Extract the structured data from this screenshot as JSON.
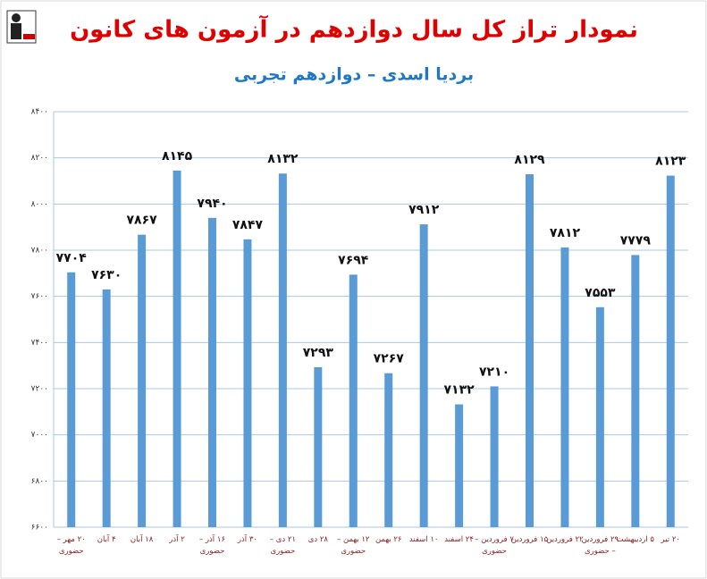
{
  "chart_data": {
    "type": "bar",
    "title": "نمودار تراز کل سال دوازدهم در آزمون های کانون",
    "subtitle": "بردیا اسدی – دوازدهم تجربی",
    "categories": [
      "۲۰ مهر – حضوری",
      "۴ آبان",
      "۱۸ آبان",
      "۲ آذر",
      "۱۶ آذر – حضوری",
      "۳۰ آذر",
      "۲۱ دی – حضوری",
      "۲۸ دی",
      "۱۲ بهمن – حضوری",
      "۲۶ بهمن",
      "۱۰ اسفند",
      "۲۴ اسفند",
      "۷ فروردین – حضوری",
      "۱۵ فروردین",
      "۲۲ فروردین",
      "۲۹ فروردین – حضوری",
      "۵ اردیبهشت",
      "۲۰ تیر"
    ],
    "values": [
      7704,
      7630,
      7867,
      8145,
      7940,
      7847,
      8132,
      7293,
      7694,
      7267,
      7912,
      7132,
      7210,
      8129,
      7812,
      7553,
      7779,
      8123
    ],
    "value_labels": [
      "۷۷۰۴",
      "۷۶۳۰",
      "۷۸۶۷",
      "۸۱۴۵",
      "۷۹۴۰",
      "۷۸۴۷",
      "۸۱۳۲",
      "۷۲۹۳",
      "۷۶۹۴",
      "۷۲۶۷",
      "۷۹۱۲",
      "۷۱۳۲",
      "۷۲۱۰",
      "۸۱۲۹",
      "۷۸۱۲",
      "۷۵۵۳",
      "۷۷۷۹",
      "۸۱۲۳"
    ],
    "color": "#5b9bd5",
    "ylim": [
      6600,
      8400
    ],
    "yticks": [
      {
        "value": 6600,
        "label": "۶۶۰۰"
      },
      {
        "value": 6800,
        "label": "۶۸۰۰"
      },
      {
        "value": 7000,
        "label": "۷۰۰۰"
      },
      {
        "value": 7200,
        "label": "۷۲۰۰"
      },
      {
        "value": 7400,
        "label": "۷۴۰۰"
      },
      {
        "value": 7600,
        "label": "۷۶۰۰"
      },
      {
        "value": 7800,
        "label": "۷۸۰۰"
      },
      {
        "value": 8000,
        "label": "۸۰۰۰"
      },
      {
        "value": 8200,
        "label": "۸۲۰۰"
      },
      {
        "value": 8400,
        "label": "۸۴۰۰"
      }
    ],
    "grid": true
  }
}
